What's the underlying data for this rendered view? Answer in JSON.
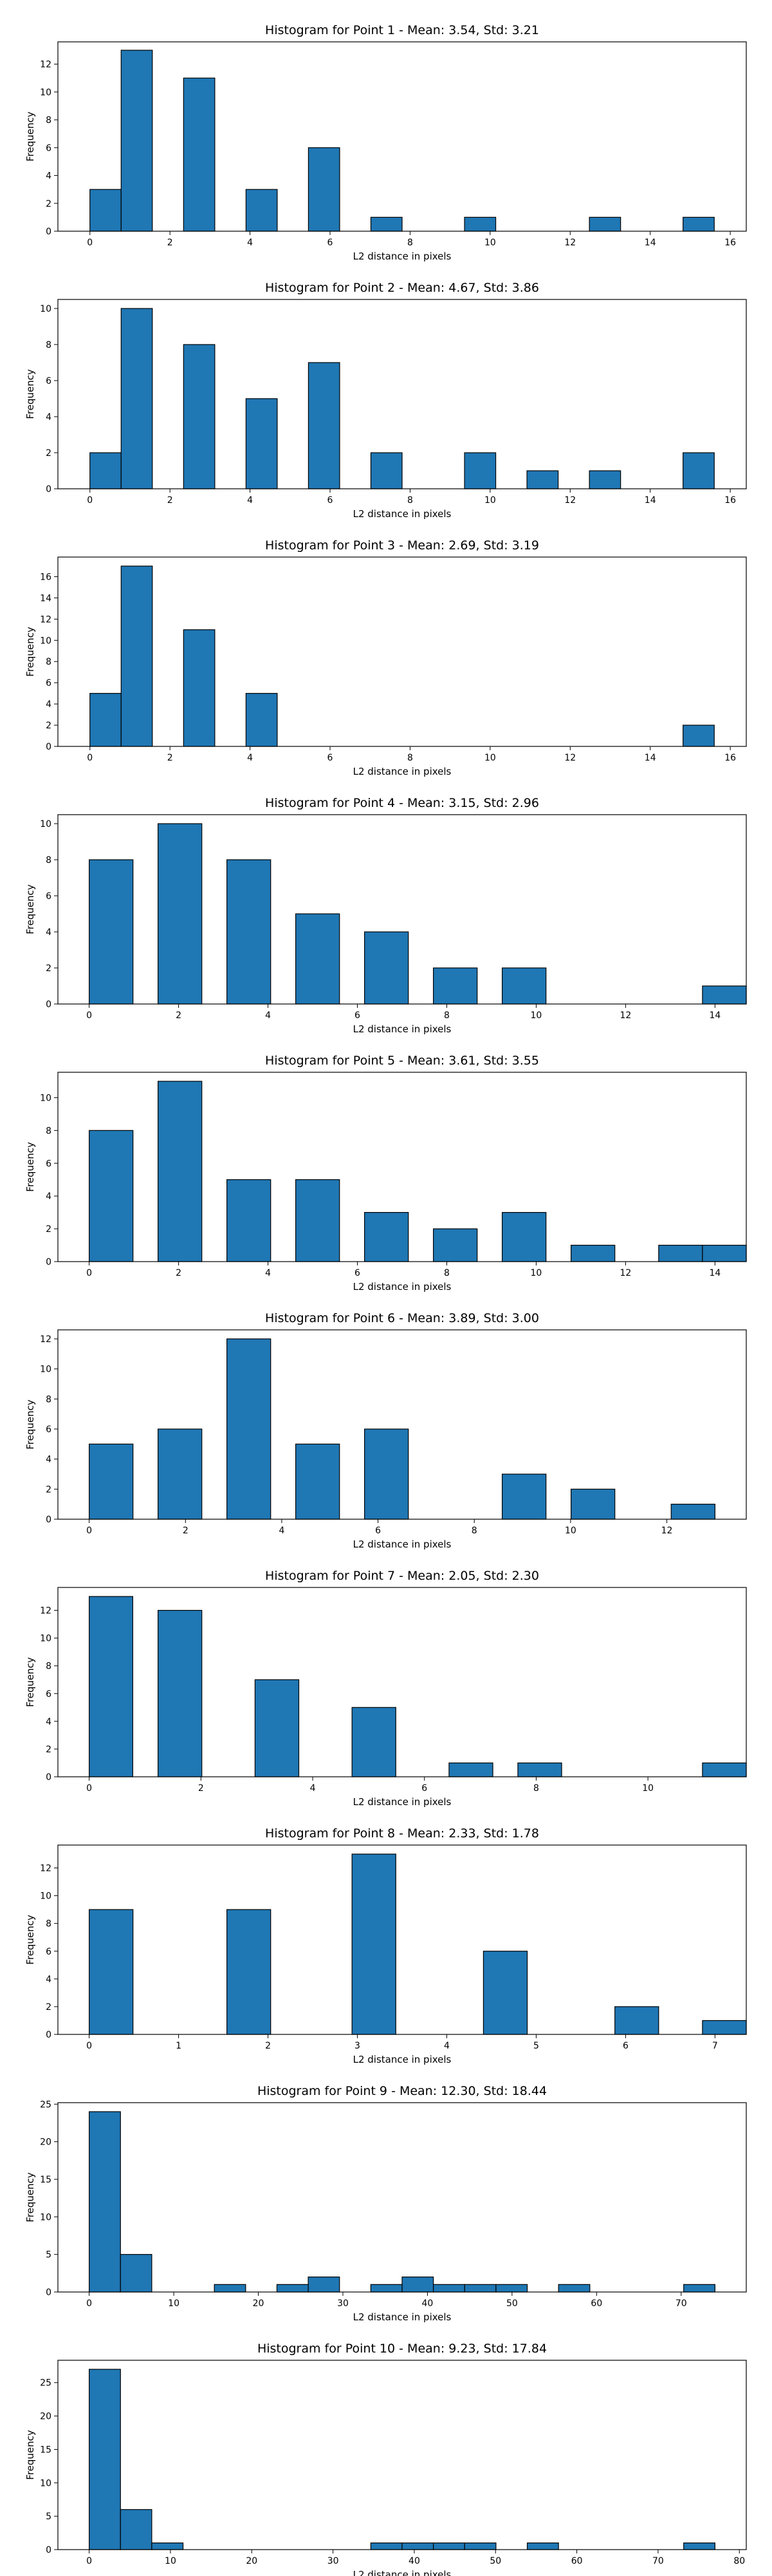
{
  "chart_data": [
    {
      "type": "bar",
      "title": "Histogram for Point 1 - Mean: 3.54, Std: 3.21",
      "xlabel": "L2 distance in pixels",
      "ylabel": "Frequency",
      "xlim": [
        -0.8,
        16.4
      ],
      "ylim": [
        0,
        13.6
      ],
      "xticks": [
        0,
        2,
        4,
        6,
        8,
        10,
        12,
        14,
        16
      ],
      "yticks": [
        0,
        2,
        4,
        6,
        8,
        10,
        12
      ],
      "bins": [
        [
          0.0,
          0.78,
          3
        ],
        [
          0.78,
          1.56,
          13
        ],
        [
          2.34,
          3.12,
          11
        ],
        [
          3.9,
          4.68,
          3
        ],
        [
          5.46,
          6.24,
          6
        ],
        [
          7.02,
          7.8,
          1
        ],
        [
          9.36,
          10.14,
          1
        ],
        [
          12.48,
          13.26,
          1
        ],
        [
          14.82,
          15.6,
          1
        ]
      ]
    },
    {
      "type": "bar",
      "title": "Histogram for Point 2 - Mean: 4.67, Std: 3.86",
      "xlabel": "L2 distance in pixels",
      "ylabel": "Frequency",
      "xlim": [
        -0.8,
        16.4
      ],
      "ylim": [
        0,
        10.5
      ],
      "xticks": [
        0,
        2,
        4,
        6,
        8,
        10,
        12,
        14,
        16
      ],
      "yticks": [
        0,
        2,
        4,
        6,
        8,
        10
      ],
      "bins": [
        [
          0.0,
          0.78,
          2
        ],
        [
          0.78,
          1.56,
          10
        ],
        [
          2.34,
          3.12,
          8
        ],
        [
          3.9,
          4.68,
          5
        ],
        [
          5.46,
          6.24,
          7
        ],
        [
          7.02,
          7.8,
          2
        ],
        [
          9.36,
          10.14,
          2
        ],
        [
          10.92,
          11.7,
          1
        ],
        [
          12.48,
          13.26,
          1
        ],
        [
          14.82,
          15.6,
          2
        ]
      ]
    },
    {
      "type": "bar",
      "title": "Histogram for Point 3 - Mean: 2.69, Std: 3.19",
      "xlabel": "L2 distance in pixels",
      "ylabel": "Frequency",
      "xlim": [
        -0.8,
        16.4
      ],
      "ylim": [
        0,
        17.85
      ],
      "xticks": [
        0,
        2,
        4,
        6,
        8,
        10,
        12,
        14,
        16
      ],
      "yticks": [
        0,
        2,
        4,
        6,
        8,
        10,
        12,
        14,
        16
      ],
      "bins": [
        [
          0.0,
          0.78,
          5
        ],
        [
          0.78,
          1.56,
          17
        ],
        [
          2.34,
          3.12,
          11
        ],
        [
          3.9,
          4.68,
          5
        ],
        [
          14.82,
          15.6,
          2
        ]
      ]
    },
    {
      "type": "bar",
      "title": "Histogram for Point 4 - Mean: 3.15, Std: 2.96",
      "xlabel": "L2 distance in pixels",
      "ylabel": "Frequency",
      "xlim": [
        -0.7,
        14.7
      ],
      "ylim": [
        0,
        10.5
      ],
      "xticks": [
        0,
        2,
        4,
        6,
        8,
        10,
        12,
        14
      ],
      "yticks": [
        0,
        2,
        4,
        6,
        8,
        10
      ],
      "bins": [
        [
          0.0,
          0.98,
          8
        ],
        [
          1.54,
          2.52,
          10
        ],
        [
          3.08,
          4.06,
          8
        ],
        [
          4.62,
          5.6,
          5
        ],
        [
          6.16,
          7.14,
          4
        ],
        [
          7.7,
          8.68,
          2
        ],
        [
          9.24,
          10.22,
          2
        ],
        [
          13.72,
          14.7,
          1
        ]
      ]
    },
    {
      "type": "bar",
      "title": "Histogram for Point 5 - Mean: 3.61, Std: 3.55",
      "xlabel": "L2 distance in pixels",
      "ylabel": "Frequency",
      "xlim": [
        -0.7,
        14.7
      ],
      "ylim": [
        0,
        11.55
      ],
      "xticks": [
        0,
        2,
        4,
        6,
        8,
        10,
        12,
        14
      ],
      "yticks": [
        0,
        2,
        4,
        6,
        8,
        10
      ],
      "bins": [
        [
          0.0,
          0.98,
          8
        ],
        [
          1.54,
          2.52,
          11
        ],
        [
          3.08,
          4.06,
          5
        ],
        [
          4.62,
          5.6,
          5
        ],
        [
          6.16,
          7.14,
          3
        ],
        [
          7.7,
          8.68,
          2
        ],
        [
          9.24,
          10.22,
          3
        ],
        [
          10.78,
          11.76,
          1
        ],
        [
          12.74,
          13.72,
          1
        ],
        [
          13.72,
          14.7,
          1
        ]
      ]
    },
    {
      "type": "bar",
      "title": "Histogram for Point 6 - Mean: 3.89, Std: 3.00",
      "xlabel": "L2 distance in pixels",
      "ylabel": "Frequency",
      "xlim": [
        -0.65,
        13.65
      ],
      "ylim": [
        0,
        12.6
      ],
      "xticks": [
        0,
        2,
        4,
        6,
        8,
        10,
        12
      ],
      "yticks": [
        0,
        2,
        4,
        6,
        8,
        10,
        12
      ],
      "bins": [
        [
          0.0,
          0.91,
          5
        ],
        [
          1.43,
          2.34,
          6
        ],
        [
          2.86,
          3.77,
          12
        ],
        [
          4.29,
          5.2,
          5
        ],
        [
          5.72,
          6.63,
          6
        ],
        [
          8.58,
          9.49,
          3
        ],
        [
          10.01,
          10.92,
          2
        ],
        [
          12.09,
          13.0,
          1
        ]
      ]
    },
    {
      "type": "bar",
      "title": "Histogram for Point 7 - Mean: 2.05, Std: 2.30",
      "xlabel": "L2 distance in pixels",
      "ylabel": "Frequency",
      "xlim": [
        -0.56,
        11.76
      ],
      "ylim": [
        0,
        13.65
      ],
      "xticks": [
        0,
        2,
        4,
        6,
        8,
        10
      ],
      "yticks": [
        0,
        2,
        4,
        6,
        8,
        10,
        12
      ],
      "bins": [
        [
          0.0,
          0.78,
          13
        ],
        [
          1.232,
          2.016,
          12
        ],
        [
          2.968,
          3.752,
          7
        ],
        [
          4.704,
          5.488,
          5
        ],
        [
          6.44,
          7.224,
          1
        ],
        [
          7.672,
          8.456,
          1
        ],
        [
          10.976,
          11.76,
          1
        ]
      ]
    },
    {
      "type": "bar",
      "title": "Histogram for Point 8 - Mean: 2.33, Std: 1.78",
      "xlabel": "L2 distance in pixels",
      "ylabel": "Frequency",
      "xlim": [
        -0.35,
        7.35
      ],
      "ylim": [
        0,
        13.65
      ],
      "xticks": [
        0,
        1,
        2,
        3,
        4,
        5,
        6,
        7
      ],
      "yticks": [
        0,
        2,
        4,
        6,
        8,
        10,
        12
      ],
      "bins": [
        [
          0.0,
          0.49,
          9
        ],
        [
          1.54,
          2.03,
          9
        ],
        [
          2.94,
          3.43,
          13
        ],
        [
          4.41,
          4.9,
          6
        ],
        [
          5.88,
          6.37,
          2
        ],
        [
          6.86,
          7.35,
          1
        ]
      ]
    },
    {
      "type": "bar",
      "title": "Histogram for Point 9 - Mean: 12.30, Std: 18.44",
      "xlabel": "L2 distance in pixels",
      "ylabel": "Frequency",
      "xlim": [
        -3.7,
        77.7
      ],
      "ylim": [
        0,
        25.2
      ],
      "xticks": [
        0,
        10,
        20,
        30,
        40,
        50,
        60,
        70
      ],
      "yticks": [
        0,
        5,
        10,
        15,
        20,
        25
      ],
      "bins": [
        [
          0.0,
          3.7,
          24
        ],
        [
          3.7,
          7.4,
          5
        ],
        [
          14.8,
          18.5,
          1
        ],
        [
          22.2,
          25.9,
          1
        ],
        [
          25.9,
          29.6,
          2
        ],
        [
          33.3,
          37.0,
          1
        ],
        [
          37.0,
          40.7,
          2
        ],
        [
          40.7,
          44.4,
          1
        ],
        [
          44.4,
          48.1,
          1
        ],
        [
          48.1,
          51.8,
          1
        ],
        [
          55.5,
          59.2,
          1
        ],
        [
          70.3,
          74.0,
          1
        ]
      ]
    },
    {
      "type": "bar",
      "title": "Histogram for Point 10 - Mean: 9.23, Std: 17.84",
      "xlabel": "L2 distance in pixels",
      "ylabel": "Frequency",
      "xlim": [
        -3.85,
        80.85
      ],
      "ylim": [
        0,
        28.35
      ],
      "xticks": [
        0,
        10,
        20,
        30,
        40,
        50,
        60,
        70,
        80
      ],
      "yticks": [
        0,
        5,
        10,
        15,
        20,
        25
      ],
      "bins": [
        [
          0.0,
          3.85,
          27
        ],
        [
          3.85,
          7.7,
          6
        ],
        [
          7.7,
          11.55,
          1
        ],
        [
          34.65,
          38.5,
          1
        ],
        [
          38.5,
          42.35,
          1
        ],
        [
          42.35,
          46.2,
          1
        ],
        [
          46.2,
          50.05,
          1
        ],
        [
          53.9,
          57.75,
          1
        ],
        [
          73.15,
          77.0,
          1
        ]
      ]
    }
  ],
  "colors": {
    "bar_fill": "#1f77b4",
    "bar_edge": "#000000"
  }
}
